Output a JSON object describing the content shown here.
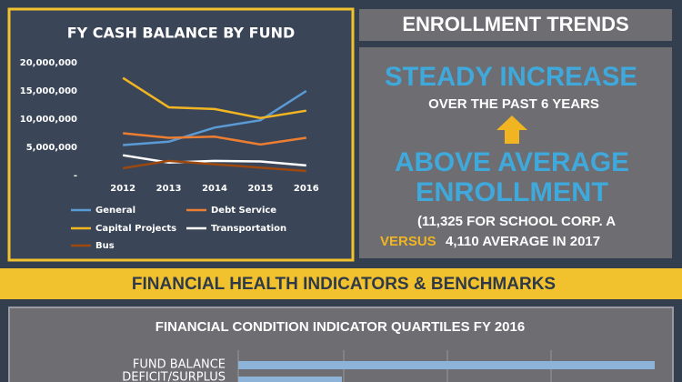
{
  "chart_data": {
    "type": "line",
    "title": "FY CASH BALANCE BY FUND",
    "categories": [
      "2012",
      "2013",
      "2014",
      "2015",
      "2016"
    ],
    "ylim": [
      0,
      20000000
    ],
    "yticks": [
      {
        "value": 0,
        "label": "-"
      },
      {
        "value": 5000000,
        "label": "5,000,000"
      },
      {
        "value": 10000000,
        "label": "10,000,000"
      },
      {
        "value": 15000000,
        "label": "15,000,000"
      },
      {
        "value": 20000000,
        "label": "20,000,000"
      }
    ],
    "grid": false,
    "series": [
      {
        "name": "General",
        "color": "#5b9bd5",
        "values": [
          5400000,
          6000000,
          8500000,
          9800000,
          15000000
        ]
      },
      {
        "name": "Debt Service",
        "color": "#ed7d31",
        "values": [
          7500000,
          6700000,
          6900000,
          5500000,
          6700000
        ]
      },
      {
        "name": "Capital Projects",
        "color": "#f2b522",
        "values": [
          17300000,
          12100000,
          11800000,
          10200000,
          11500000
        ]
      },
      {
        "name": "Transportation",
        "color": "#ffffff",
        "values": [
          3600000,
          2300000,
          2600000,
          2500000,
          1800000
        ]
      },
      {
        "name": "Bus",
        "color": "#9e480e",
        "values": [
          1300000,
          2600000,
          2000000,
          1400000,
          800000
        ]
      }
    ]
  },
  "enrollment": {
    "title": "ENROLLMENT TRENDS",
    "headline1": "STEADY INCREASE",
    "subline1": "OVER THE PAST 6 YEARS",
    "headline2a": "ABOVE AVERAGE",
    "headline2b": "ENROLLMENT",
    "detail1": "(11,325 FOR SCHOOL CORP. A",
    "detail2a": "VERSUS",
    "detail2b": "4,110 AVERAGE IN 2017"
  },
  "banner": {
    "title": "FINANCIAL HEALTH INDICATORS & BENCHMARKS"
  },
  "quartiles": {
    "title": "FINANCIAL CONDITION INDICATOR QUARTILES FY 2016",
    "row_label1": "FUND BALANCE",
    "row_label2": "DEFICIT/SURPLUS"
  }
}
